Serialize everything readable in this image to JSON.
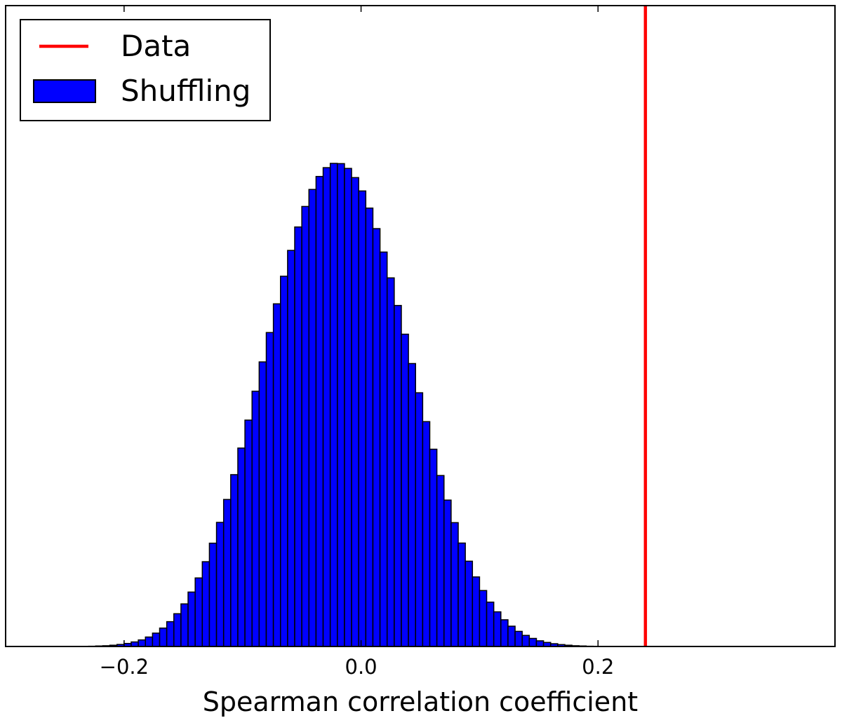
{
  "chart_data": {
    "type": "bar",
    "xlabel": "Spearman correlation coefficient",
    "ylabel": "",
    "xlim": [
      -0.3,
      0.4
    ],
    "ylim": [
      0,
      1.0
    ],
    "yticks_shown": false,
    "xticks": [
      {
        "value": -0.2,
        "label": "−0.2"
      },
      {
        "value": 0.0,
        "label": "0.0"
      },
      {
        "value": 0.2,
        "label": "0.2"
      }
    ],
    "grid": false,
    "legend_position": "top-left",
    "reference_line": {
      "name": "Data",
      "x": 0.24,
      "color": "#ff0000"
    },
    "histogram": {
      "name": "Shuffling",
      "color": "#0000ff",
      "edgecolor": "#000000",
      "bin_edges": [
        -0.23,
        -0.224,
        -0.218,
        -0.212,
        -0.206,
        -0.2,
        -0.194,
        -0.188,
        -0.182,
        -0.176,
        -0.17,
        -0.164,
        -0.158,
        -0.152,
        -0.146,
        -0.14,
        -0.134,
        -0.128,
        -0.122,
        -0.116,
        -0.11,
        -0.104,
        -0.098,
        -0.092,
        -0.086,
        -0.08,
        -0.074,
        -0.068,
        -0.062,
        -0.056,
        -0.05,
        -0.044,
        -0.038,
        -0.032,
        -0.026,
        -0.02,
        -0.014,
        -0.008,
        -0.002,
        0.004,
        0.01,
        0.016,
        0.022,
        0.028,
        0.034,
        0.04,
        0.046,
        0.052,
        0.058,
        0.064,
        0.07,
        0.076,
        0.082,
        0.088,
        0.094,
        0.1,
        0.106,
        0.112,
        0.118,
        0.124,
        0.13,
        0.136,
        0.142,
        0.148,
        0.154,
        0.16,
        0.166,
        0.172,
        0.178,
        0.184,
        0.19,
        0.196,
        0.202,
        0.208,
        0.214,
        0.22,
        0.226
      ],
      "heights": [
        0.0002,
        0.0004,
        0.0006,
        0.001,
        0.0016,
        0.0024,
        0.0036,
        0.0052,
        0.0075,
        0.0106,
        0.0146,
        0.0197,
        0.026,
        0.0338,
        0.0432,
        0.0544,
        0.0673,
        0.082,
        0.0985,
        0.1167,
        0.1364,
        0.1575,
        0.1797,
        0.2026,
        0.2259,
        0.2492,
        0.272,
        0.2939,
        0.3144,
        0.333,
        0.3493,
        0.3628,
        0.3731,
        0.3801,
        0.3835,
        0.3833,
        0.3795,
        0.3722,
        0.3616,
        0.348,
        0.3317,
        0.3131,
        0.2926,
        0.2707,
        0.2479,
        0.2246,
        0.2014,
        0.1785,
        0.1566,
        0.1357,
        0.1162,
        0.0983,
        0.0821,
        0.0677,
        0.0552,
        0.0444,
        0.0352,
        0.0275,
        0.0212,
        0.0161,
        0.012,
        0.0088,
        0.0064,
        0.0045,
        0.0032,
        0.0022,
        0.0015,
        0.001,
        0.0006,
        0.0004,
        0.0002,
        0.0001,
        0.0001,
        0.0,
        0.0,
        0.0
      ]
    }
  }
}
